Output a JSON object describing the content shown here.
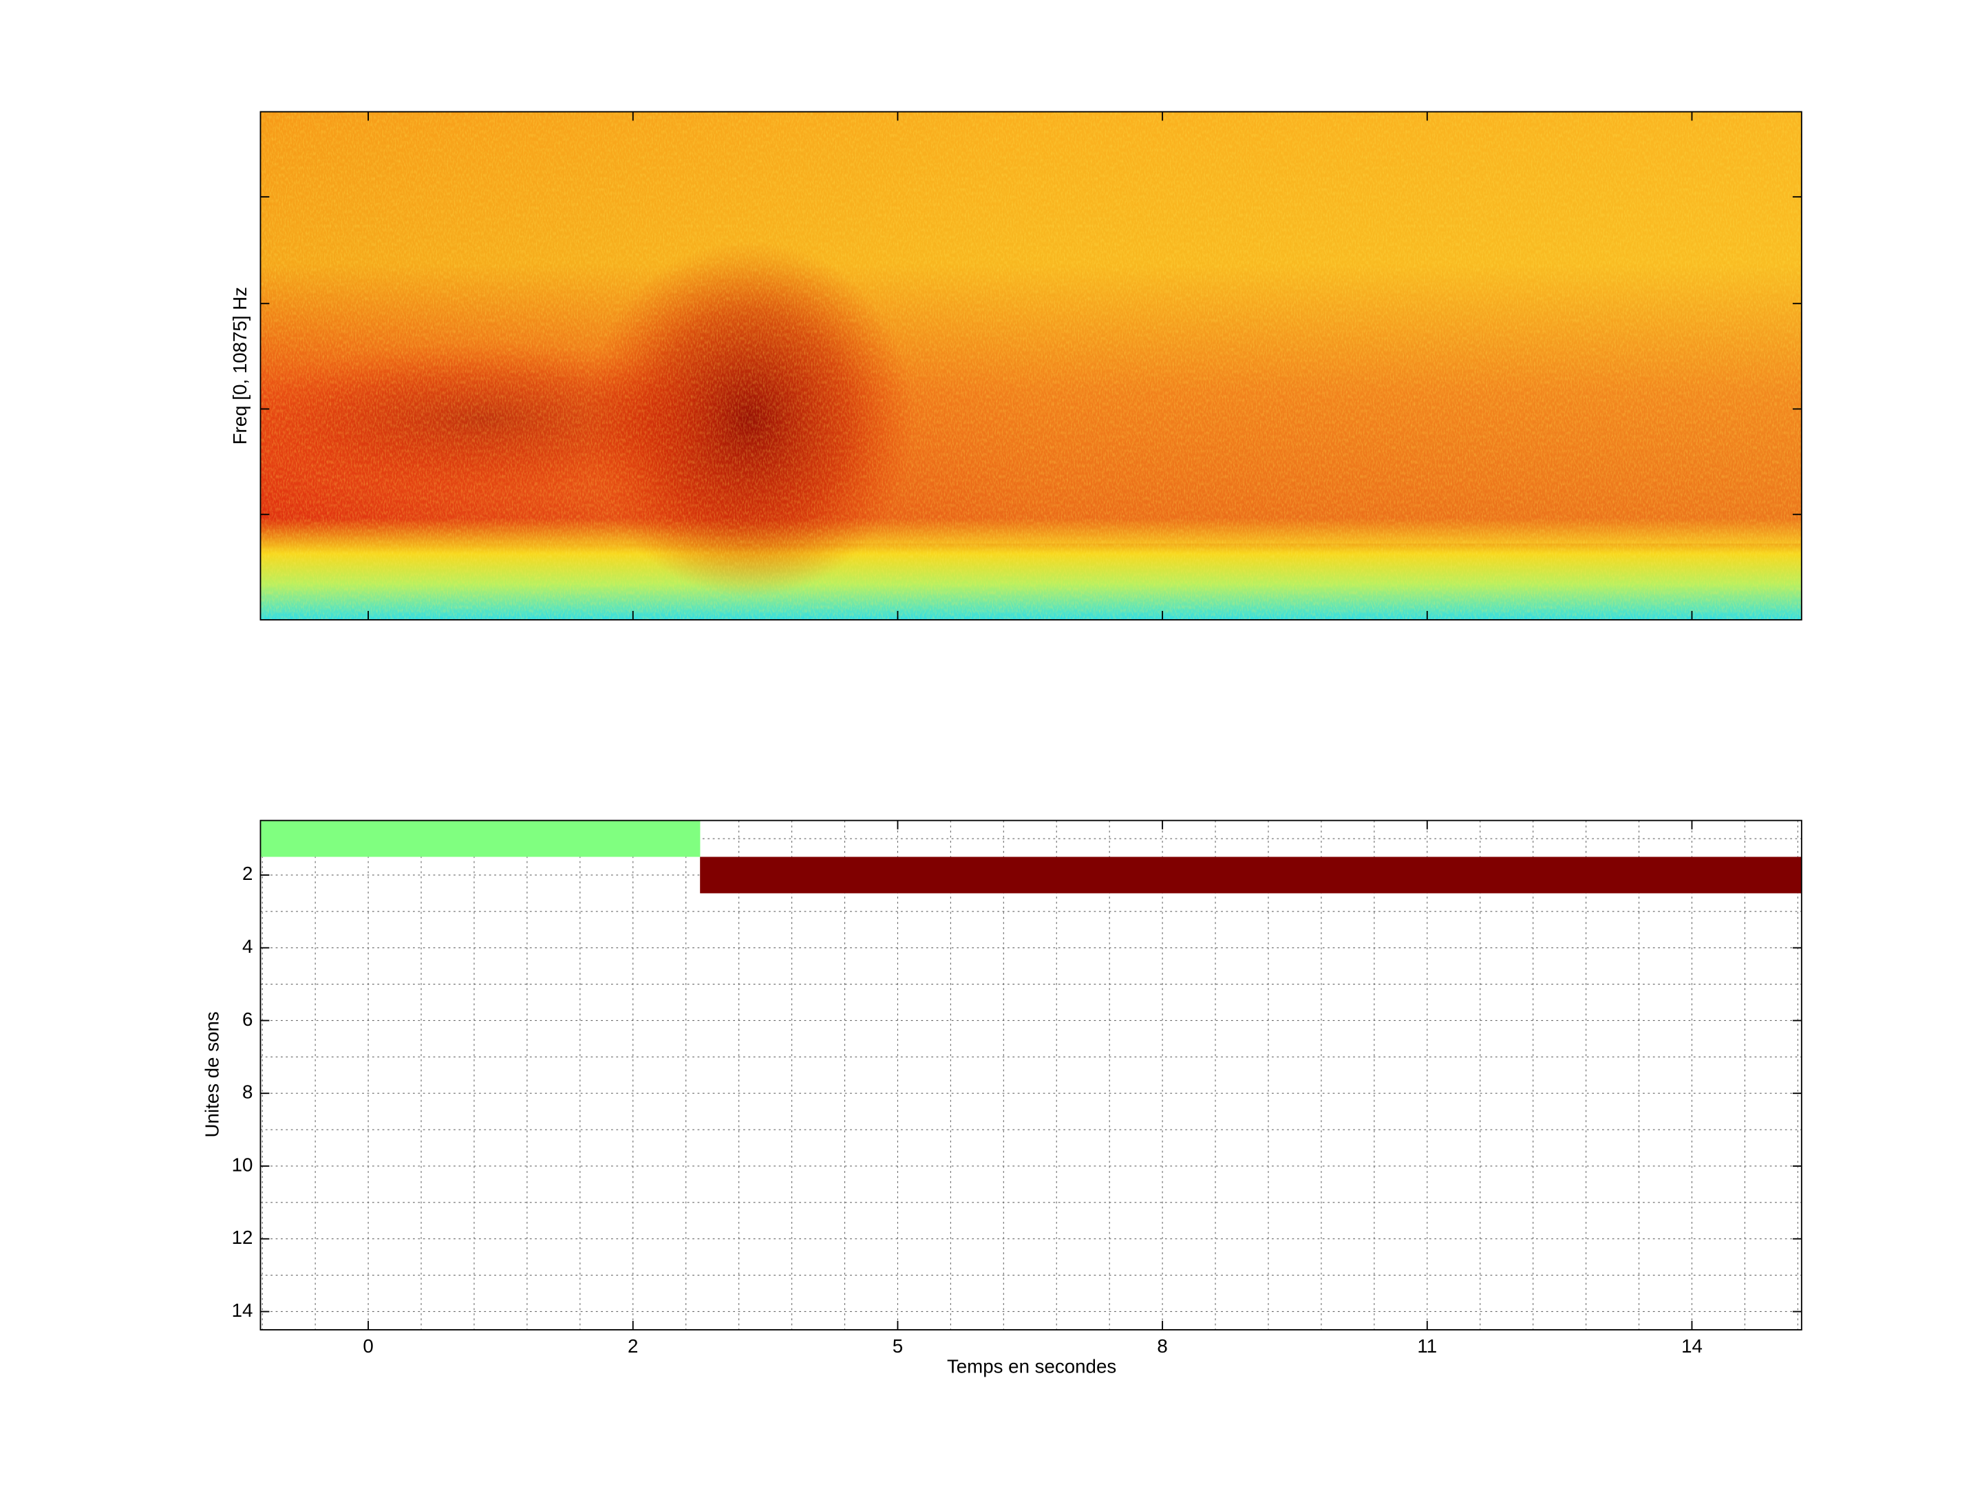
{
  "chart_data": [
    {
      "type": "spectrogram",
      "ylabel": "Freq [0, 10875] Hz"
    },
    {
      "type": "timeline",
      "xlabel": "Temps en secondes",
      "ylabel": "Unites de sons",
      "xlim": [
        -1.54,
        14.76
      ],
      "ylim": [
        0.5,
        14.5
      ],
      "xticks": [
        {
          "value": -0.4,
          "label": "0"
        },
        {
          "value": 2.4,
          "label": "2"
        },
        {
          "value": 5.2,
          "label": "5"
        },
        {
          "value": 8.0,
          "label": "8"
        },
        {
          "value": 10.8,
          "label": "11"
        },
        {
          "value": 13.6,
          "label": "14"
        }
      ],
      "yticks": [
        2,
        4,
        6,
        8,
        10,
        12,
        14
      ],
      "grid": true,
      "segments": [
        {
          "unit": 1,
          "start": -1.54,
          "end": 3.11,
          "color": "#80ff80"
        },
        {
          "unit": 2,
          "start": 3.11,
          "end": 14.76,
          "color": "#800000"
        }
      ]
    }
  ]
}
